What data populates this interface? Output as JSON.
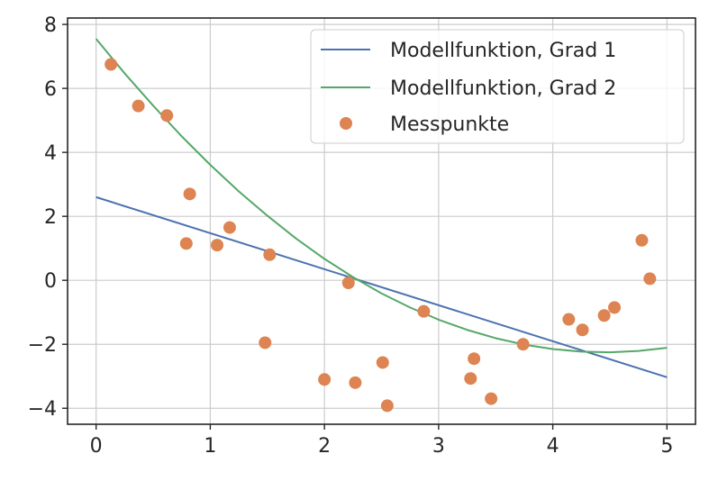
{
  "chart_data": {
    "type": "line",
    "title": "",
    "xlabel": "",
    "ylabel": "",
    "xlim": [
      -0.25,
      5.25
    ],
    "ylim": [
      -4.5,
      8.2
    ],
    "xticks": [
      0,
      1,
      2,
      3,
      4,
      5
    ],
    "yticks": [
      8,
      6,
      4,
      2,
      0,
      -2,
      -4
    ],
    "xtick_labels": [
      "0",
      "1",
      "2",
      "3",
      "4",
      "5"
    ],
    "ytick_labels": [
      "8",
      "6",
      "4",
      "2",
      "0",
      "−2",
      "−4"
    ],
    "grid": true,
    "legend_position": "top-right",
    "series": [
      {
        "name": "Modellfunktion, Grad 1",
        "type": "line",
        "color": "#4c72b0",
        "x": [
          0,
          5
        ],
        "y": [
          2.6,
          -3.03
        ]
      },
      {
        "name": "Modellfunktion, Grad 2",
        "type": "line",
        "color": "#55a868",
        "x": [
          0,
          0.25,
          0.5,
          0.75,
          1,
          1.25,
          1.5,
          1.75,
          2,
          2.25,
          2.5,
          2.75,
          3,
          3.25,
          3.5,
          3.75,
          4,
          4.25,
          4.5,
          4.75,
          5
        ],
        "y": [
          7.55,
          6.47,
          5.46,
          4.5,
          3.61,
          2.78,
          2.02,
          1.31,
          0.67,
          0.1,
          -0.41,
          -0.85,
          -1.23,
          -1.55,
          -1.81,
          -2.01,
          -2.15,
          -2.23,
          -2.25,
          -2.21,
          -2.11
        ]
      },
      {
        "name": "Messpunkte",
        "type": "scatter",
        "color": "#dd8452",
        "x": [
          0.13,
          0.37,
          0.62,
          0.79,
          0.82,
          1.06,
          1.17,
          1.48,
          1.52,
          2.0,
          2.21,
          2.27,
          2.51,
          2.55,
          2.87,
          3.28,
          3.31,
          3.46,
          3.74,
          4.14,
          4.26,
          4.45,
          4.54,
          4.78,
          4.85
        ],
        "y": [
          6.75,
          5.45,
          5.15,
          1.15,
          2.7,
          1.1,
          1.65,
          -1.95,
          0.8,
          -3.1,
          -0.08,
          -3.2,
          -2.57,
          -3.92,
          -0.97,
          -3.07,
          -2.45,
          -3.7,
          -2.0,
          -1.22,
          -1.55,
          -1.1,
          -0.85,
          1.25,
          0.05
        ]
      }
    ]
  }
}
